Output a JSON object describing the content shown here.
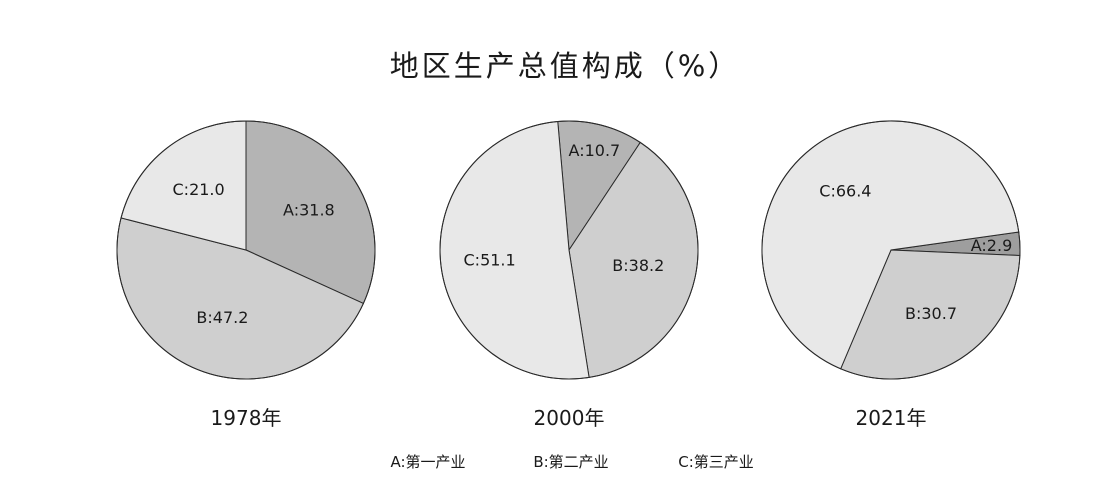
{
  "chart_data": {
    "type": "pie",
    "title": "地区生产总值构成（%）",
    "legend": {
      "placement": "bottom",
      "entries": [
        {
          "key": "A",
          "label": "A:第一产业"
        },
        {
          "key": "B",
          "label": "B:第二产业"
        },
        {
          "key": "C",
          "label": "C:第三产业"
        }
      ]
    },
    "charts": [
      {
        "year_label": "1978年",
        "slices": [
          {
            "key": "A",
            "value": 31.8,
            "label": "A:31.8",
            "color": "#b4b4b4"
          },
          {
            "key": "B",
            "value": 47.2,
            "label": "B:47.2",
            "color": "#cfcfcf"
          },
          {
            "key": "C",
            "value": 21.0,
            "label": "C:21.0",
            "color": "#e8e8e8"
          }
        ]
      },
      {
        "year_label": "2000年",
        "slices": [
          {
            "key": "A",
            "value": 10.7,
            "label": "A:10.7",
            "color": "#b4b4b4"
          },
          {
            "key": "B",
            "value": 38.2,
            "label": "B:38.2",
            "color": "#cfcfcf"
          },
          {
            "key": "C",
            "value": 51.1,
            "label": "C:51.1",
            "color": "#e8e8e8"
          }
        ]
      },
      {
        "year_label": "2021年",
        "slices": [
          {
            "key": "A",
            "value": 2.9,
            "label": "A:2.9",
            "color": "#9e9e9e"
          },
          {
            "key": "B",
            "value": 30.7,
            "label": "B:30.7",
            "color": "#cfcfcf"
          },
          {
            "key": "C",
            "value": 66.4,
            "label": "C:66.4",
            "color": "#e8e8e8"
          }
        ]
      }
    ]
  }
}
